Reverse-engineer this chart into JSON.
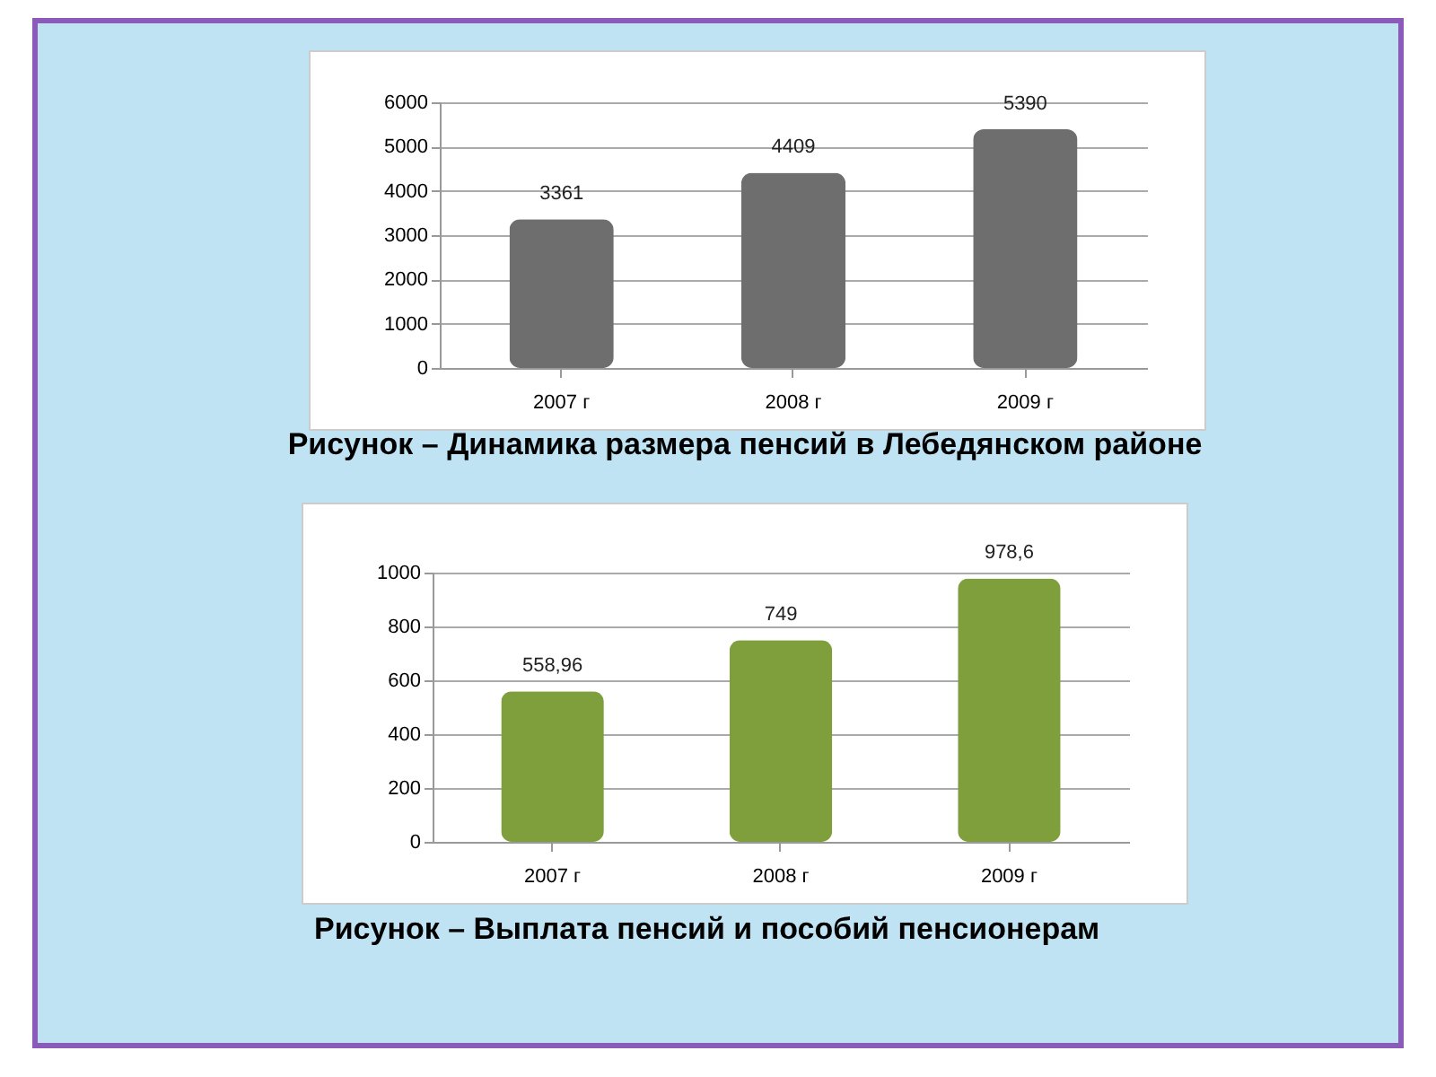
{
  "chart_data": [
    {
      "type": "bar",
      "categories": [
        "2007 г",
        "2008 г",
        "2009 г"
      ],
      "values": [
        3361,
        4409,
        5390
      ],
      "color": "#6e6e6e",
      "ylim": [
        0,
        6000
      ],
      "yticks": [
        0,
        1000,
        2000,
        3000,
        4000,
        5000,
        6000
      ],
      "grid": "y",
      "data_labels": true,
      "annotations": [
        "Рисунок  – Динамика размера пенсий в Лебедянском районе"
      ]
    },
    {
      "type": "bar",
      "categories": [
        "2007 г",
        "2008 г",
        "2009 г"
      ],
      "values": [
        558.96,
        749,
        978.6
      ],
      "color": "#7f9f3c",
      "ylim": [
        0,
        1000
      ],
      "yticks": [
        0,
        200,
        400,
        600,
        800,
        1000
      ],
      "grid": "y",
      "value_labels": [
        "558,96",
        "749",
        "978,6"
      ],
      "annotations": [
        "Рисунок  – Выплата пенсий и пособий пенсионерам"
      ]
    }
  ]
}
